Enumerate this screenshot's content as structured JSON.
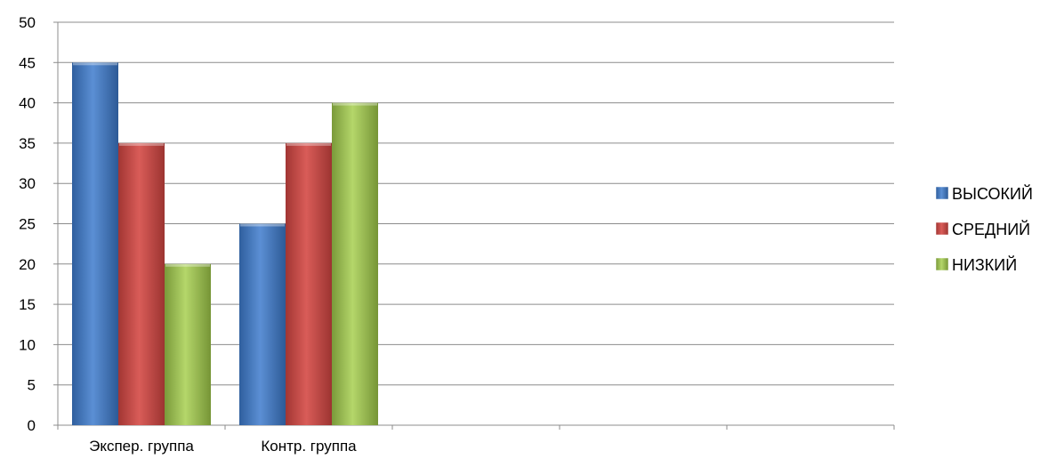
{
  "chart_data": {
    "type": "bar",
    "categories": [
      "Экспер. группа",
      "Контр. группа",
      "",
      "",
      ""
    ],
    "series": [
      {
        "name": "ВЫСОКИЙ",
        "values": [
          45,
          25,
          null,
          null,
          null
        ],
        "color": "#4a7ebb"
      },
      {
        "name": "СРЕДНИЙ",
        "values": [
          35,
          35,
          null,
          null,
          null
        ],
        "color": "#be4b48"
      },
      {
        "name": "НИЗКИЙ",
        "values": [
          20,
          40,
          null,
          null,
          null
        ],
        "color": "#98b954"
      }
    ],
    "yticks": [
      0,
      5,
      10,
      15,
      20,
      25,
      30,
      35,
      40,
      45,
      50
    ],
    "ylim": [
      0,
      50
    ],
    "grid": true,
    "legend": "right",
    "title": "",
    "xlabel": "",
    "ylabel": ""
  }
}
